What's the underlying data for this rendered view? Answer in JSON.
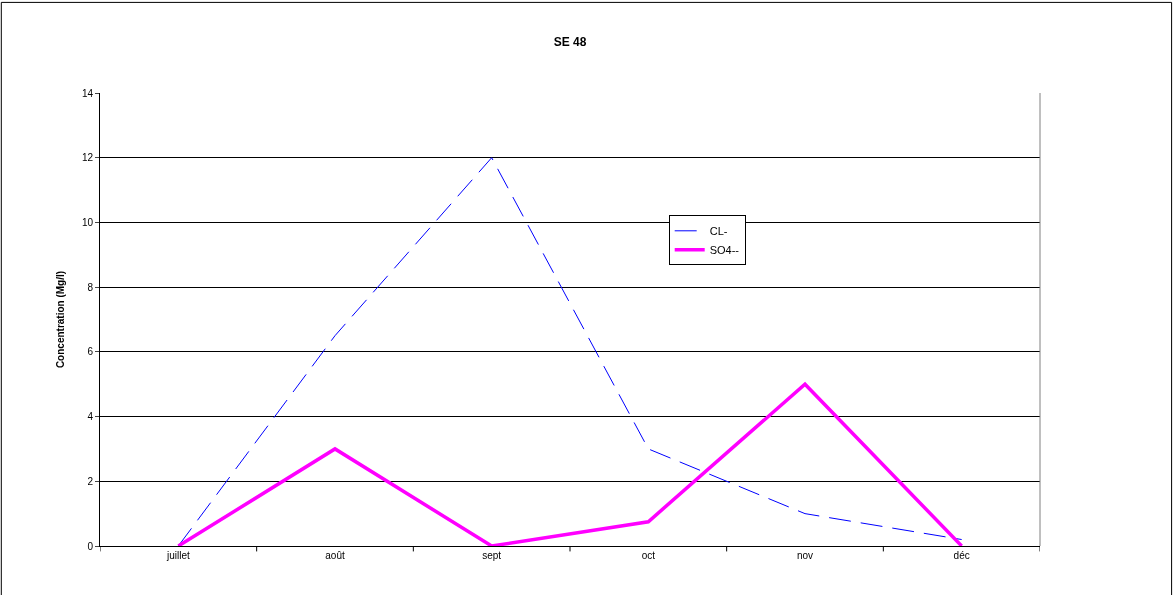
{
  "chart_data": {
    "type": "line",
    "title": "SE 48",
    "ylabel": "Concentration (Mg/l)",
    "categories": [
      "juillet",
      "août",
      "sept",
      "oct",
      "nov",
      "déc"
    ],
    "series": [
      {
        "name": "CL-",
        "color": "#0000ff",
        "values": [
          0,
          6.5,
          12,
          3,
          1,
          0.2
        ],
        "line_style": "dashed"
      },
      {
        "name": "SO4--",
        "color": "#ff00ff",
        "values": [
          0,
          3,
          0,
          0.75,
          5,
          0
        ],
        "line_style": "solid"
      }
    ],
    "ylim": [
      0,
      14
    ],
    "yticks": [
      0,
      2,
      4,
      6,
      8,
      10,
      12,
      14
    ],
    "grid": "y",
    "legend": "right",
    "marker": "none"
  }
}
